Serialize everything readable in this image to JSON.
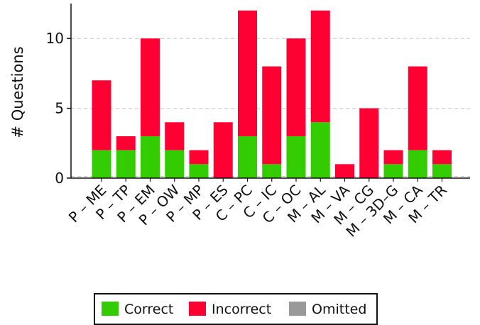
{
  "chart_data": {
    "type": "bar",
    "stacked": true,
    "ylabel": "# Questions",
    "ylim": [
      0,
      12.5
    ],
    "yticks": [
      0,
      5,
      10
    ],
    "grid": "horizontal-dashed",
    "legend_placement": "bottom-center",
    "categories": [
      "P – ME",
      "P – TP",
      "P – EM",
      "P – OW",
      "P – MP",
      "P – ES",
      "C – PC",
      "C – IC",
      "C – OC",
      "M – AL",
      "M – VA",
      "M – CG",
      "M – 3D–G",
      "M – CA",
      "M – TR"
    ],
    "series": [
      {
        "name": "Correct",
        "color": "#33cc00",
        "values": [
          2,
          2,
          3,
          2,
          1,
          0,
          3,
          1,
          3,
          4,
          0,
          0,
          1,
          2,
          1
        ]
      },
      {
        "name": "Incorrect",
        "color": "#ff0033",
        "values": [
          5,
          1,
          7,
          2,
          1,
          4,
          9,
          7,
          7,
          8,
          1,
          5,
          1,
          6,
          1
        ]
      },
      {
        "name": "Omitted",
        "color": "#999999",
        "values": [
          0,
          0,
          0,
          0,
          0,
          0,
          0,
          0,
          0,
          0,
          0,
          0,
          0,
          0,
          0
        ]
      }
    ]
  }
}
